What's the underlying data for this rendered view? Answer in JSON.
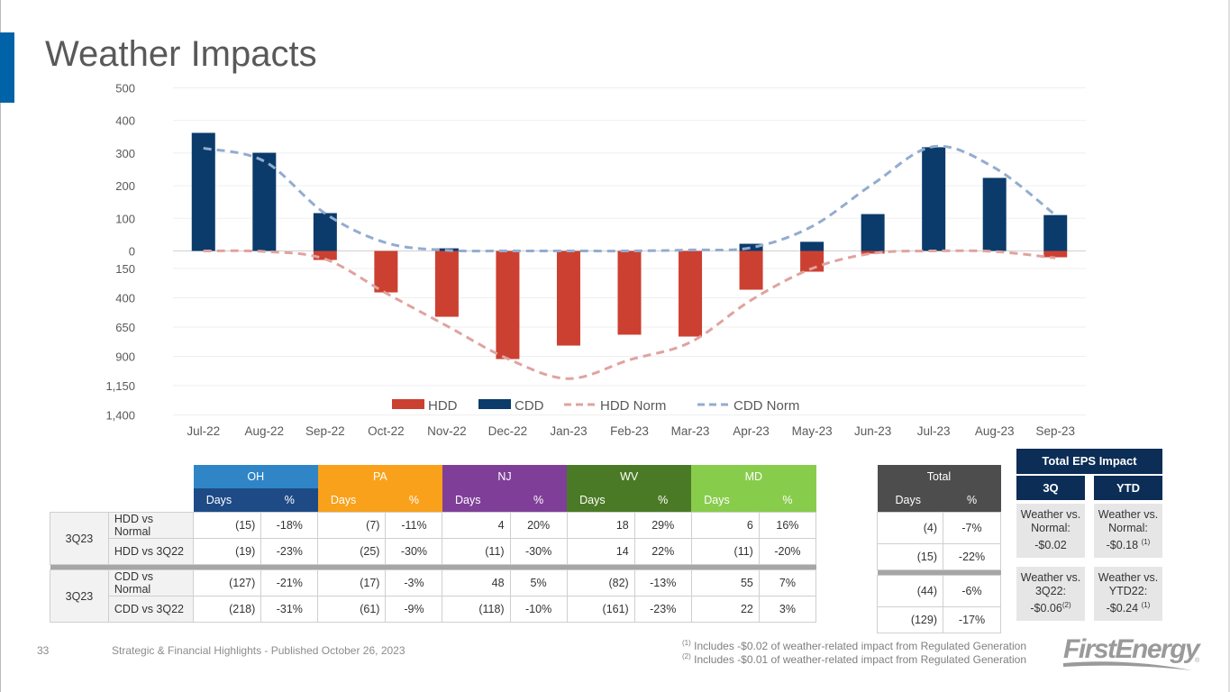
{
  "page": {
    "title": "Weather Impacts",
    "page_number": "33",
    "footer_text": "Strategic & Financial Highlights - Published October 26, 2023",
    "footnotes": [
      {
        "mark": "(1)",
        "text": "Includes -$0.02 of weather-related impact from Regulated Generation"
      },
      {
        "mark": "(2)",
        "text": "Includes -$0.01 of weather-related impact from Regulated Generation"
      }
    ],
    "logo_text": "FirstEnergy",
    "logo_mark": "®",
    "accent_color": "#0063a8"
  },
  "chart_data": {
    "type": "bar",
    "title": "",
    "xlabel": "",
    "ylabel": "",
    "categories": [
      "Jul-22",
      "Aug-22",
      "Sep-22",
      "Oct-22",
      "Nov-22",
      "Dec-22",
      "Jan-23",
      "Feb-23",
      "Mar-23",
      "Apr-23",
      "May-23",
      "Jun-23",
      "Jul-23",
      "Aug-23",
      "Sep-23"
    ],
    "upper_axis": {
      "label_values": [
        0,
        100,
        200,
        300,
        400,
        500
      ],
      "ylim": [
        0,
        500
      ],
      "series": "CDD"
    },
    "lower_axis": {
      "label_values": [
        150,
        400,
        650,
        900,
        1150,
        1400
      ],
      "tick_labels": [
        "150",
        "400",
        "650",
        "900",
        "1,150",
        "1,400"
      ],
      "ylim": [
        0,
        1400
      ],
      "direction": "downward",
      "series": "HDD"
    },
    "series": [
      {
        "name": "HDD",
        "type": "bar",
        "color": "#cc4031",
        "values": [
          0,
          0,
          77,
          354,
          562,
          923,
          808,
          715,
          731,
          331,
          177,
          23,
          0,
          0,
          54
        ]
      },
      {
        "name": "CDD",
        "type": "bar",
        "color": "#0a3b6b",
        "values": [
          362,
          301,
          116,
          0,
          8,
          0,
          0,
          0,
          0,
          22,
          28,
          113,
          318,
          224,
          110
        ]
      },
      {
        "name": "HDD Norm",
        "type": "line",
        "style": "dashed",
        "color": "#e0a3a0",
        "values": [
          0,
          5,
          70,
          360,
          640,
          920,
          1090,
          930,
          780,
          420,
          150,
          20,
          0,
          5,
          60
        ]
      },
      {
        "name": "CDD Norm",
        "type": "line",
        "style": "dashed",
        "color": "#93acd0",
        "values": [
          315,
          275,
          115,
          25,
          2,
          0,
          0,
          0,
          3,
          10,
          75,
          205,
          320,
          255,
          110
        ]
      }
    ],
    "legend": {
      "position": "bottom-center",
      "entries": [
        "HDD",
        "CDD",
        "HDD Norm",
        "CDD Norm"
      ]
    },
    "grid": true
  },
  "table": {
    "states": [
      {
        "name": "OH",
        "color": "#2f85c6",
        "sub_color": "#1e4b86"
      },
      {
        "name": "PA",
        "color": "#f9a11b",
        "sub_color": "#f9a11b"
      },
      {
        "name": "NJ",
        "color": "#7f3f98",
        "sub_color": "#7f3f98"
      },
      {
        "name": "WV",
        "color": "#4b7a26",
        "sub_color": "#4b7a26"
      },
      {
        "name": "MD",
        "color": "#88cc4c",
        "sub_color": "#88cc4c"
      }
    ],
    "sub_headers": {
      "days": "Days",
      "pct": "%"
    },
    "groups": [
      {
        "period": "3Q23",
        "rows": [
          {
            "label": "HDD vs Normal",
            "values": [
              [
                "(15)",
                "-18%"
              ],
              [
                "(7)",
                "-11%"
              ],
              [
                "4",
                "20%"
              ],
              [
                "18",
                "29%"
              ],
              [
                "6",
                "16%"
              ]
            ]
          },
          {
            "label": "HDD vs 3Q22",
            "values": [
              [
                "(19)",
                "-23%"
              ],
              [
                "(25)",
                "-30%"
              ],
              [
                "(11)",
                "-30%"
              ],
              [
                "14",
                "22%"
              ],
              [
                "(11)",
                "-20%"
              ]
            ]
          }
        ]
      },
      {
        "period": "3Q23",
        "rows": [
          {
            "label": "CDD vs Normal",
            "values": [
              [
                "(127)",
                "-21%"
              ],
              [
                "(17)",
                "-3%"
              ],
              [
                "48",
                "5%"
              ],
              [
                "(82)",
                "-13%"
              ],
              [
                "55",
                "7%"
              ]
            ]
          },
          {
            "label": "CDD vs 3Q22",
            "values": [
              [
                "(218)",
                "-31%"
              ],
              [
                "(61)",
                "-9%"
              ],
              [
                "(118)",
                "-10%"
              ],
              [
                "(161)",
                "-23%"
              ],
              [
                "22",
                "3%"
              ]
            ]
          }
        ]
      }
    ],
    "total": {
      "header": "Total",
      "color": "#4d4d4d",
      "rows": [
        [
          "(4)",
          "-7%"
        ],
        [
          "(15)",
          "-22%"
        ],
        [
          "(44)",
          "-6%"
        ],
        [
          "(129)",
          "-17%"
        ]
      ]
    }
  },
  "eps": {
    "header": "Total EPS Impact",
    "columns": [
      {
        "label": "3Q",
        "cells": [
          {
            "line1": "Weather vs.",
            "line2": "Normal:",
            "line3": "-$0.02",
            "note": ""
          },
          {
            "line1": "Weather vs.",
            "line2": "3Q22:",
            "line3": "-$0.06",
            "note": "(2)"
          }
        ]
      },
      {
        "label": "YTD",
        "cells": [
          {
            "line1": "Weather vs.",
            "line2": "Normal:",
            "line3": "-$0.18 ",
            "note": "(1)"
          },
          {
            "line1": "Weather vs.",
            "line2": "YTD22:",
            "line3": "-$0.24 ",
            "note": "(1)"
          }
        ]
      }
    ]
  }
}
